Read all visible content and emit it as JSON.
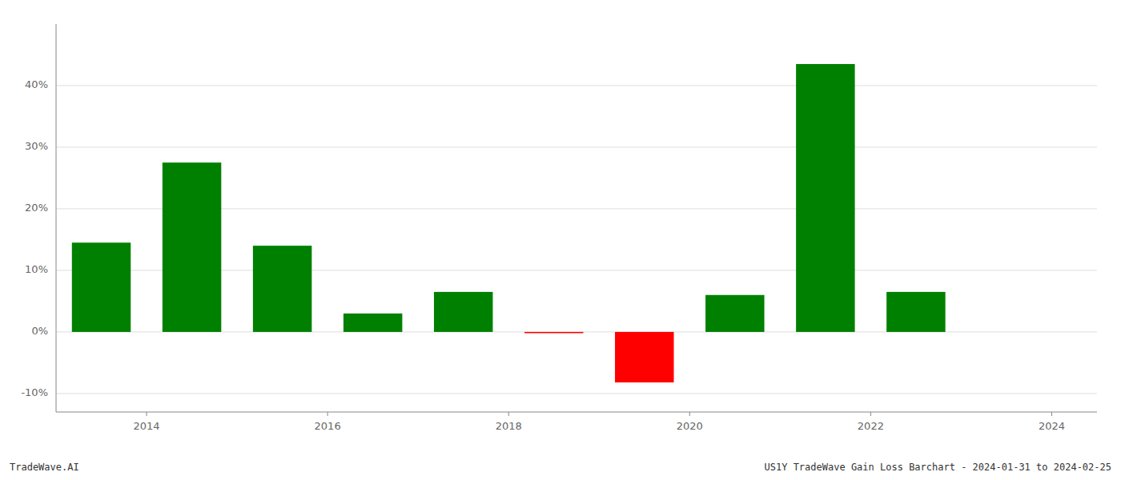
{
  "chart_data": {
    "type": "bar",
    "x": [
      2013.5,
      2014.5,
      2015.5,
      2016.5,
      2017.5,
      2018.5,
      2019.5,
      2020.5,
      2021.5,
      2022.5
    ],
    "values": [
      0.145,
      0.275,
      0.14,
      0.03,
      0.065,
      -0.002,
      -0.082,
      0.06,
      0.435,
      0.065
    ],
    "colors": [
      "#008000",
      "#008000",
      "#008000",
      "#008000",
      "#008000",
      "#ff0000",
      "#ff0000",
      "#008000",
      "#008000",
      "#008000"
    ],
    "xlim": [
      2013.0,
      2024.5
    ],
    "ylim": [
      -0.13,
      0.5
    ],
    "xticks": [
      2014,
      2016,
      2018,
      2020,
      2022,
      2024
    ],
    "yticks": [
      {
        "value": -0.1,
        "label": "-10%"
      },
      {
        "value": 0.0,
        "label": "0%"
      },
      {
        "value": 0.1,
        "label": "10%"
      },
      {
        "value": 0.2,
        "label": "20%"
      },
      {
        "value": 0.3,
        "label": "30%"
      },
      {
        "value": 0.4,
        "label": "40%"
      }
    ],
    "grid": true,
    "annotations": [
      "TradeWave.AI",
      "US1Y TradeWave Gain Loss Barchart - 2024-01-31 to 2024-02-25"
    ]
  }
}
